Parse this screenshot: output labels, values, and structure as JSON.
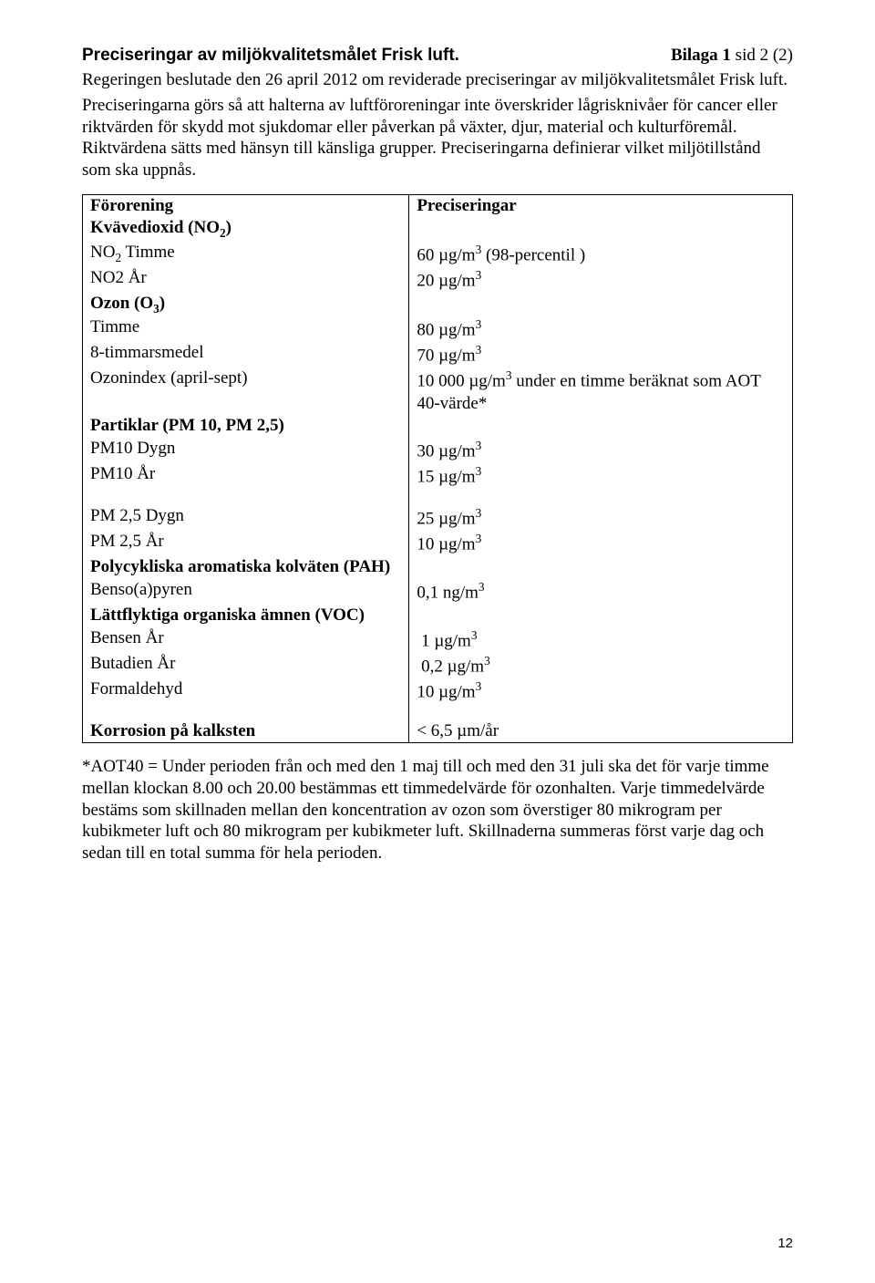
{
  "header": {
    "appendix_label": "Bilaga 1",
    "page_label": "sid 2 (2)"
  },
  "title": "Preciseringar av miljökvalitetsmålet Frisk luft.",
  "intro": "Regeringen beslutade den 26 april 2012 om reviderade preciseringar av miljökvalitetsmålet Frisk luft.",
  "body": "Preciseringarna görs så att halterna av luftföroreningar inte överskrider lågrisknivåer för cancer eller riktvärden för skydd mot sjukdomar eller påverkan på växter, djur, material och kulturföremål. Riktvärdena sätts med hänsyn till känsliga grupper. Preciseringarna definierar vilket miljötillstånd som ska uppnås.",
  "table": {
    "col1_header": "Förorening",
    "col2_header": "Preciseringar",
    "rows": [
      {
        "c1_html": "<span class='bold'>Kvävedioxid (NO<sub>2</sub>)</span>",
        "c2_html": ""
      },
      {
        "c1_html": "NO<sub>2</sub> Timme",
        "c2_html": "60 µg/m<sup>3</sup> (98-percentil )"
      },
      {
        "c1_html": "NO2 År",
        "c2_html": "20 µg/m<sup>3</sup>"
      },
      {
        "c1_html": "<span class='bold'>Ozon (O<sub>3</sub>)</span>",
        "c2_html": ""
      },
      {
        "c1_html": "Timme",
        "c2_html": "80 µg/m<sup>3</sup>"
      },
      {
        "c1_html": "8-timmarsmedel",
        "c2_html": "70 µg/m<sup>3</sup>"
      },
      {
        "c1_html": "Ozonindex (april-sept)",
        "c2_html": "10 000 µg/m<sup>3</sup> under en timme beräknat som AOT 40-värde*"
      },
      {
        "c1_html": "<span class='bold'>Partiklar (PM 10, PM 2,5)</span>",
        "c2_html": ""
      },
      {
        "c1_html": "PM10 Dygn",
        "c2_html": "30 µg/m<sup>3</sup>"
      },
      {
        "c1_html": "PM10 År",
        "c2_html": "15 µg/m<sup>3</sup>",
        "spacer_after": true
      },
      {
        "c1_html": "PM 2,5 Dygn",
        "c2_html": "25 µg/m<sup>3</sup>"
      },
      {
        "c1_html": "PM 2,5 År",
        "c2_html": "10 µg/m<sup>3</sup>"
      },
      {
        "c1_html": "<span class='bold'>Polycykliska aromatiska kolväten (PAH)</span>",
        "c2_html": ""
      },
      {
        "c1_html": "Benso(a)pyren",
        "c2_html": "0,1 ng/m<sup>3</sup>"
      },
      {
        "c1_html": "<span class='bold'>Lättflyktiga organiska ämnen (VOC)</span>",
        "c2_html": ""
      },
      {
        "c1_html": "Bensen År",
        "c2_html": "&nbsp;1 µg/m<sup>3</sup>"
      },
      {
        "c1_html": "Butadien År",
        "c2_html": "&nbsp;0,2 µg/m<sup>3</sup>"
      },
      {
        "c1_html": "Formaldehyd",
        "c2_html": "10 µg/m<sup>3</sup>",
        "spacer_after": true
      },
      {
        "c1_html": "<span class='bold'>Korrosion på kalksten</span>",
        "c2_html": "&lt; 6,5 µm/år"
      }
    ]
  },
  "footnote": "*AOT40 = Under perioden från och med den 1 maj till och med den 31 juli ska det för varje timme mellan klockan 8.00 och 20.00 bestämmas ett timmedelvärde för ozonhalten. Varje timmedelvärde bestäms som skillnaden mellan den koncentration av ozon som överstiger 80 mikrogram per kubikmeter luft och 80 mikrogram per kubikmeter luft. Skillnaderna summeras först varje dag och sedan till en total summa för hela perioden.",
  "page_number": "12"
}
